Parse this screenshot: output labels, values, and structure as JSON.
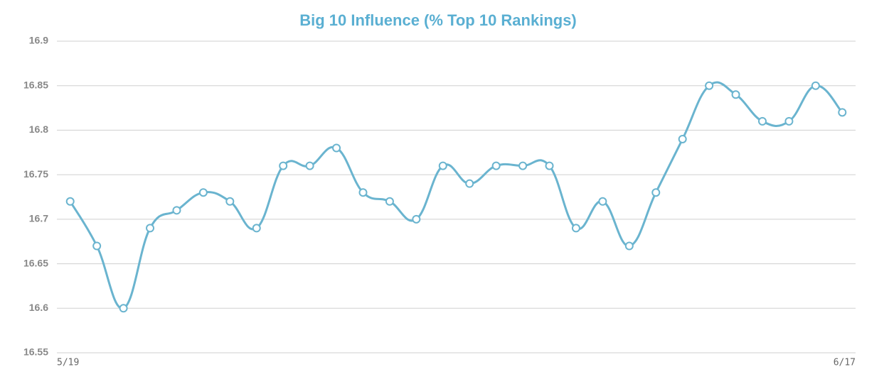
{
  "chart_data": {
    "type": "line",
    "title": "Big 10 Influence (% Top 10 Rankings)",
    "categories": [
      "5/19",
      null,
      null,
      null,
      null,
      null,
      null,
      null,
      null,
      null,
      null,
      null,
      null,
      null,
      null,
      null,
      null,
      null,
      null,
      null,
      null,
      null,
      null,
      null,
      null,
      null,
      null,
      null,
      null,
      "6/17"
    ],
    "values": [
      16.72,
      16.67,
      16.6,
      16.69,
      16.71,
      16.73,
      16.72,
      16.69,
      16.76,
      16.76,
      16.78,
      16.73,
      16.72,
      16.7,
      16.76,
      16.74,
      16.76,
      16.76,
      16.76,
      16.69,
      16.72,
      16.67,
      16.73,
      16.79,
      16.85,
      16.84,
      16.81,
      16.81,
      16.85,
      16.82
    ],
    "color": "#6ab4cf",
    "ylim": [
      16.55,
      16.9
    ],
    "yticks": [
      16.55,
      16.6,
      16.65,
      16.7,
      16.75,
      16.8,
      16.85,
      16.9
    ],
    "grid": true
  }
}
